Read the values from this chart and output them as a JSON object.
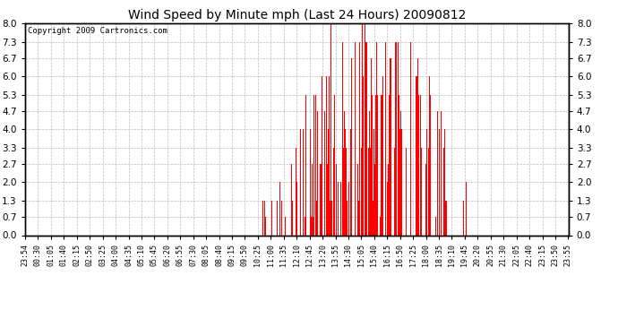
{
  "title": "Wind Speed by Minute mph (Last 24 Hours) 20090812",
  "copyright": "Copyright 2009 Cartronics.com",
  "bar_color": "#ff0000",
  "background_color": "#ffffff",
  "grid_color": "#bbbbbb",
  "ylim": [
    0.0,
    8.0
  ],
  "yticks": [
    0.0,
    0.7,
    1.3,
    2.0,
    2.7,
    3.3,
    4.0,
    4.7,
    5.3,
    6.0,
    6.7,
    7.3,
    8.0
  ],
  "xtick_labels": [
    "23:54",
    "00:30",
    "01:05",
    "01:40",
    "02:15",
    "02:50",
    "03:25",
    "04:00",
    "04:35",
    "05:10",
    "05:45",
    "06:20",
    "06:55",
    "07:30",
    "08:05",
    "08:40",
    "09:15",
    "09:50",
    "10:25",
    "11:00",
    "11:35",
    "12:10",
    "12:45",
    "13:20",
    "13:55",
    "14:30",
    "15:05",
    "15:40",
    "16:15",
    "16:50",
    "17:25",
    "18:00",
    "18:35",
    "19:10",
    "19:45",
    "20:20",
    "20:55",
    "21:30",
    "22:05",
    "22:40",
    "23:15",
    "23:50",
    "23:55"
  ],
  "n_total": 1441
}
